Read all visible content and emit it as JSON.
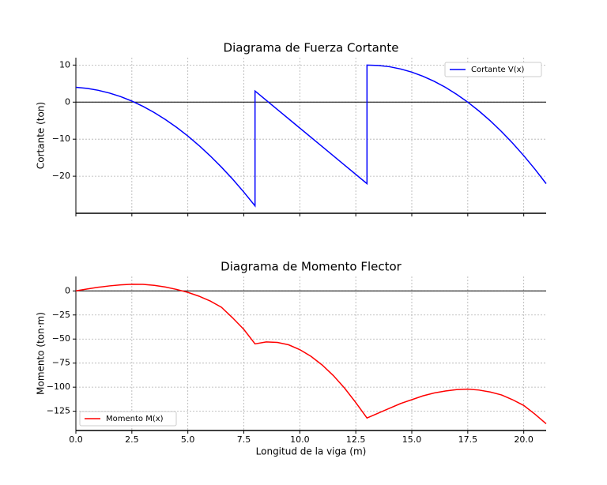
{
  "chart_data": [
    {
      "type": "line",
      "title": "Diagrama de Fuerza Cortante",
      "ylabel": "Cortante (ton)",
      "x": [
        0,
        0.5,
        1,
        1.5,
        2,
        2.5,
        3,
        3.5,
        4,
        4.5,
        5,
        5.5,
        6,
        6.5,
        7,
        7.5,
        8,
        8,
        9,
        10,
        11,
        12,
        13,
        13,
        13.5,
        14,
        14.5,
        15,
        15.5,
        16,
        16.5,
        17,
        17.5,
        18,
        18.5,
        19,
        19.5,
        20,
        20.5,
        21
      ],
      "series": [
        {
          "name": "Cortante V(x)",
          "color": "#0000ff",
          "values": [
            4,
            3.71,
            3.19,
            2.45,
            1.48,
            0.28,
            -1.15,
            -2.81,
            -4.7,
            -6.81,
            -9.15,
            -11.72,
            -14.52,
            -17.54,
            -20.79,
            -24.28,
            -28,
            3,
            -2,
            -7,
            -12,
            -17,
            -22,
            10,
            9.9,
            9.56,
            8.95,
            8.09,
            6.98,
            5.62,
            4,
            2.12,
            0,
            -2.39,
            -5.02,
            -7.91,
            -11.05,
            -14.45,
            -18.1,
            -22
          ]
        }
      ],
      "xlim": [
        0,
        21
      ],
      "xticks": [
        0,
        2.5,
        5,
        7.5,
        10,
        12.5,
        15,
        17.5,
        20
      ],
      "ylim": [
        -30,
        12
      ],
      "yticks": [
        {
          "value": -20,
          "label": "−20"
        },
        {
          "value": -10,
          "label": "−10"
        },
        0,
        10
      ],
      "hline": 0,
      "grid": true,
      "legend": "upper right"
    },
    {
      "type": "line",
      "title": "Diagrama de Momento Flector",
      "ylabel": "Momento (ton·m)",
      "xlabel": "Longitud de la viga (m)",
      "x": [
        0,
        0.5,
        1,
        1.5,
        2,
        2.5,
        3,
        3.5,
        4,
        4.5,
        5,
        5.5,
        6,
        6.5,
        7,
        7.5,
        8,
        8.5,
        9,
        9.5,
        10,
        10.5,
        11,
        11.5,
        12,
        12.5,
        13,
        13.5,
        14,
        14.5,
        15,
        15.5,
        16,
        16.5,
        17,
        17.5,
        18,
        18.5,
        19,
        19.5,
        20,
        20.5,
        21
      ],
      "series": [
        {
          "name": "Momento M(x)",
          "color": "#ff0000",
          "values": [
            0,
            2,
            3.8,
            5.2,
            6.3,
            6.9,
            6.8,
            5.8,
            4,
            1.5,
            -1.5,
            -5.5,
            -10.5,
            -17,
            -28,
            -40,
            -55,
            -53,
            -53.5,
            -56,
            -61,
            -68,
            -77,
            -88,
            -101,
            -116,
            -132,
            -127,
            -122,
            -117,
            -113,
            -109,
            -106,
            -104,
            -102.5,
            -102,
            -103,
            -105,
            -108,
            -113,
            -119,
            -128,
            -138
          ]
        }
      ],
      "xlim": [
        0,
        21
      ],
      "xticks": [
        {
          "value": 0,
          "label": "0.0"
        },
        {
          "value": 2.5,
          "label": "2.5"
        },
        {
          "value": 5,
          "label": "5.0"
        },
        {
          "value": 7.5,
          "label": "7.5"
        },
        {
          "value": 10,
          "label": "10.0"
        },
        {
          "value": 12.5,
          "label": "12.5"
        },
        {
          "value": 15,
          "label": "15.0"
        },
        {
          "value": 17.5,
          "label": "17.5"
        },
        {
          "value": 20,
          "label": "20.0"
        }
      ],
      "ylim": [
        -145,
        15
      ],
      "yticks": [
        {
          "value": -125,
          "label": "−125"
        },
        {
          "value": -100,
          "label": "−100"
        },
        {
          "value": -75,
          "label": "−75"
        },
        {
          "value": -50,
          "label": "−50"
        },
        {
          "value": -25,
          "label": "−25"
        },
        0
      ],
      "hline": 0,
      "grid": true,
      "legend": "lower left"
    }
  ]
}
